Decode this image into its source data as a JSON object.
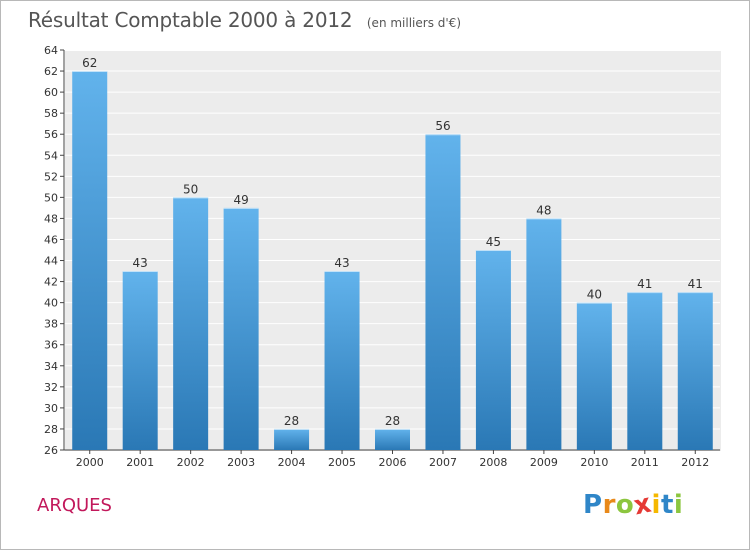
{
  "chart_data": {
    "type": "bar",
    "title": "Résultat Comptable 2000 à 2012",
    "subtitle": "(en milliers d'€)",
    "categories": [
      "2000",
      "2001",
      "2002",
      "2003",
      "2004",
      "2005",
      "2006",
      "2007",
      "2008",
      "2009",
      "2010",
      "2011",
      "2012"
    ],
    "values": [
      62,
      43,
      50,
      49,
      28,
      43,
      28,
      56,
      45,
      48,
      40,
      41,
      41
    ],
    "ylim": [
      26,
      64
    ],
    "yticks": [
      26,
      28,
      30,
      32,
      34,
      36,
      38,
      40,
      42,
      44,
      46,
      48,
      50,
      52,
      54,
      56,
      58,
      60,
      62,
      64
    ],
    "xlabel": "",
    "ylabel": "",
    "grid": true,
    "colors": {
      "bar_top": "#62b3ec",
      "bar_bottom": "#2a78b5",
      "plot_bg": "#ececec"
    }
  },
  "location": "ARQUES",
  "logo": {
    "letters": [
      "P",
      "r",
      "o",
      "x",
      "i",
      "t",
      "i"
    ],
    "colors": [
      "#2f86c8",
      "#e8891a",
      "#8cc63f",
      "#e53935",
      "#f5b800",
      "#2f86c8",
      "#8cc63f"
    ]
  }
}
